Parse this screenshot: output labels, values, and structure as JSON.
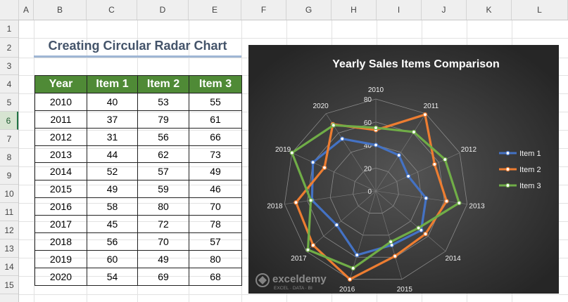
{
  "columns": [
    "A",
    "B",
    "C",
    "D",
    "E",
    "F",
    "G",
    "H",
    "I",
    "J",
    "K",
    "L"
  ],
  "rows": [
    "1",
    "2",
    "3",
    "4",
    "5",
    "6",
    "7",
    "8",
    "9",
    "10",
    "11",
    "12",
    "13",
    "14",
    "15"
  ],
  "sheet_title": "Creating Circular Radar Chart",
  "table": {
    "headers": [
      "Year",
      "Item 1",
      "Item 2",
      "Item 3"
    ],
    "rows": [
      [
        "2010",
        "40",
        "53",
        "55"
      ],
      [
        "2011",
        "37",
        "79",
        "61"
      ],
      [
        "2012",
        "31",
        "56",
        "66"
      ],
      [
        "2013",
        "44",
        "62",
        "73"
      ],
      [
        "2014",
        "52",
        "57",
        "49"
      ],
      [
        "2015",
        "49",
        "59",
        "46"
      ],
      [
        "2016",
        "58",
        "80",
        "70"
      ],
      [
        "2017",
        "45",
        "72",
        "78"
      ],
      [
        "2018",
        "56",
        "70",
        "57"
      ],
      [
        "2019",
        "60",
        "49",
        "80"
      ],
      [
        "2020",
        "54",
        "69",
        "68"
      ]
    ]
  },
  "watermark": {
    "name": "exceldemy",
    "tagline": "EXCEL · DATA · BI"
  },
  "chart_data": {
    "type": "radar",
    "title": "Yearly Sales Items Comparison",
    "categories": [
      "2010",
      "2011",
      "2012",
      "2013",
      "2014",
      "2015",
      "2016",
      "2017",
      "2018",
      "2019",
      "2020"
    ],
    "ticks": [
      "0",
      "20",
      "40",
      "60",
      "80"
    ],
    "rmax": 80,
    "legend_position": "right",
    "series": [
      {
        "name": "Item 1",
        "color": "#4472c4",
        "values": [
          40,
          37,
          31,
          44,
          52,
          49,
          58,
          45,
          56,
          60,
          54
        ]
      },
      {
        "name": "Item 2",
        "color": "#ed7d31",
        "values": [
          53,
          79,
          56,
          62,
          57,
          59,
          80,
          72,
          70,
          49,
          69
        ]
      },
      {
        "name": "Item 3",
        "color": "#70ad47",
        "values": [
          55,
          61,
          66,
          73,
          49,
          46,
          70,
          78,
          57,
          80,
          68
        ]
      }
    ]
  }
}
